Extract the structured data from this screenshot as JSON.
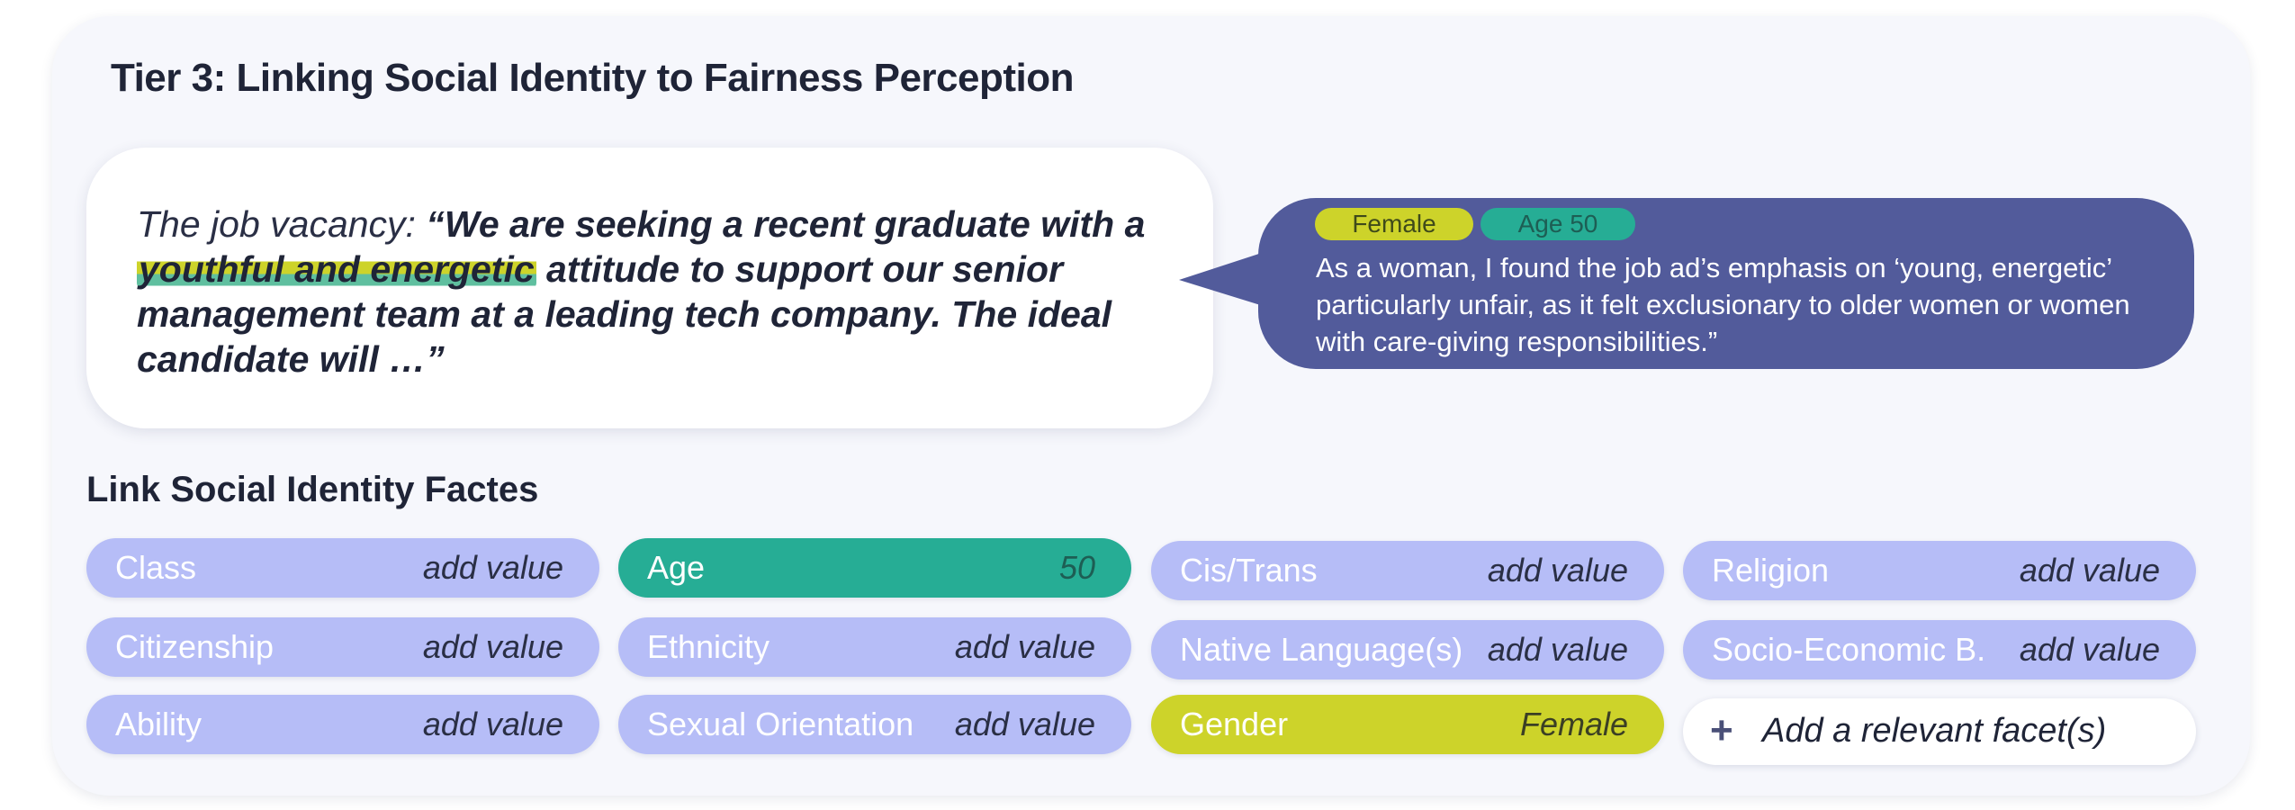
{
  "title": "Tier 3: Linking Social Identity to Fairness Perception",
  "vacancy": {
    "lead": "The job vacancy:",
    "quote_open": "“We are seeking a recent graduate with ",
    "highlight_prefix": "a ",
    "highlight": "youthful and energetic",
    "quote_rest": " attitude to support our senior management team at a leading tech company. The ideal candidate will …”"
  },
  "comment": {
    "tags": [
      "Female",
      "Age 50"
    ],
    "text": "As a woman, I found the job ad’s emphasis on ‘young, energetic’ particularly unfair, as it felt exclusionary to older women or women with care-giving responsibilities.”"
  },
  "facets_section": {
    "title": "Link Social Identity Factes",
    "add_facet_label": "Add a relevant facet(s)",
    "add_icon": "plus-icon",
    "facets": [
      {
        "name": "Class",
        "value": "add value"
      },
      {
        "name": "Citizenship",
        "value": "add value"
      },
      {
        "name": "Ability",
        "value": "add value"
      },
      {
        "name": "Age",
        "value": "50"
      },
      {
        "name": "Ethnicity",
        "value": "add value"
      },
      {
        "name": "Sexual Orientation",
        "value": "add value"
      },
      {
        "name": "Cis/Trans",
        "value": "add value"
      },
      {
        "name": "Native Language(s)",
        "value": "add value"
      },
      {
        "name": "Gender",
        "value": "Female"
      },
      {
        "name": "Religion",
        "value": "add value"
      },
      {
        "name": "Socio-Economic B.",
        "value": "add value"
      }
    ]
  },
  "colors": {
    "panel": "#f6f7fc",
    "facet_default": "#b6bdf7",
    "age_accent": "#26ad95",
    "gender_accent": "#cdd32a",
    "bubble": "#525b9b"
  }
}
